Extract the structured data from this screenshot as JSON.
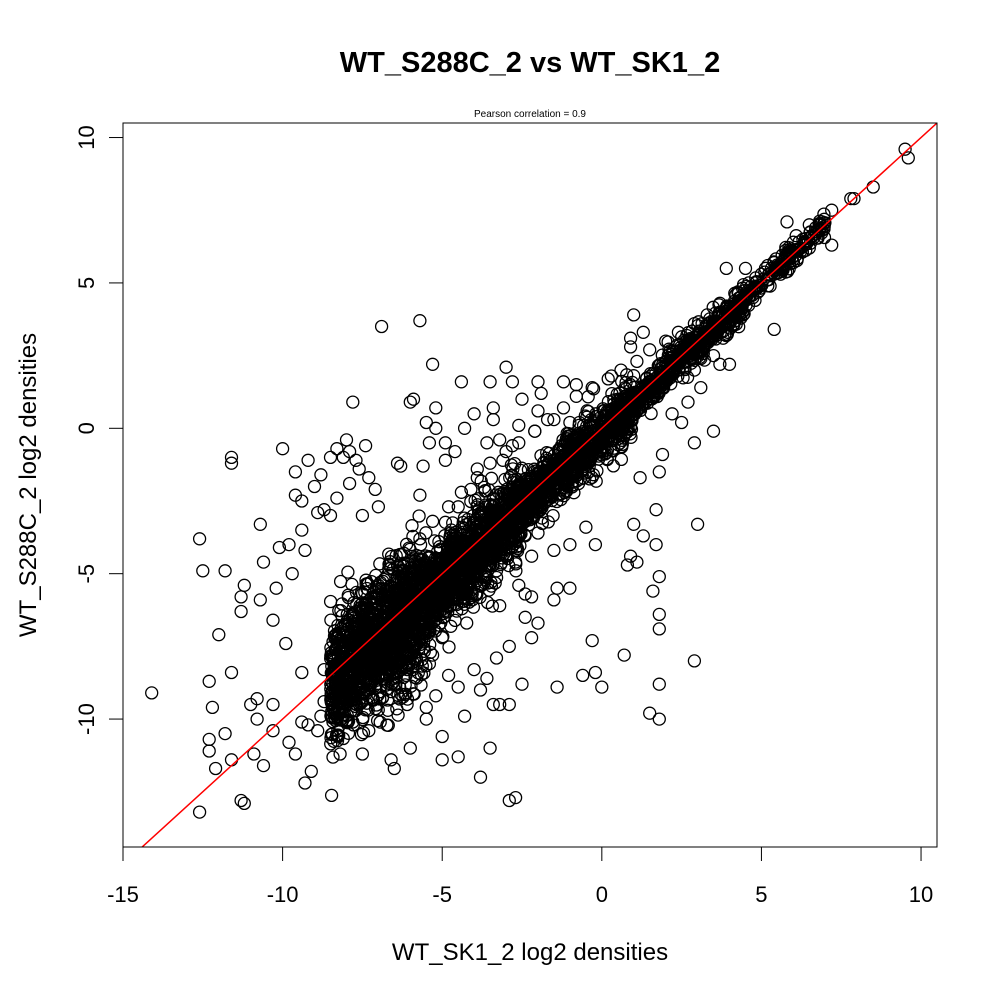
{
  "chart_data": {
    "type": "scatter",
    "title": "WT_S288C_2 vs WT_SK1_2",
    "subtitle": "Pearson correlation =  0.9",
    "xlabel": "WT_SK1_2 log2 densities",
    "ylabel": "WT_S288C_2 log2 densities",
    "xlim": [
      -15,
      10.5
    ],
    "ylim": [
      -14.4,
      10.5
    ],
    "x_ticks": [
      -15,
      -10,
      -5,
      0,
      5,
      10
    ],
    "y_ticks": [
      -10,
      -5,
      0,
      5,
      10
    ],
    "x_tick_labels": [
      "-15",
      "-10",
      "-5",
      "0",
      "5",
      "10"
    ],
    "y_tick_labels": [
      "-10",
      "-5",
      "0",
      "5",
      "10"
    ],
    "grid": false,
    "marker": "open-circle",
    "reference_line": {
      "type": "identity",
      "slope": 1,
      "intercept": 0,
      "color": "#ff0000"
    },
    "colors": {
      "points": "#000000",
      "reference_line": "#ff0000"
    },
    "points": [
      [
        9.5,
        9.6
      ],
      [
        9.6,
        9.3
      ],
      [
        8.5,
        8.3
      ],
      [
        7.8,
        7.9
      ],
      [
        7.9,
        7.9
      ],
      [
        7.2,
        7.5
      ],
      [
        6.9,
        7.1
      ],
      [
        7.2,
        6.3
      ],
      [
        6.5,
        7.0
      ],
      [
        5.8,
        7.1
      ],
      [
        6.0,
        6.4
      ],
      [
        5.2,
        5.6
      ],
      [
        4.5,
        5.5
      ],
      [
        3.9,
        5.5
      ],
      [
        5.4,
        3.4
      ],
      [
        4.3,
        4.0
      ],
      [
        3.8,
        3.1
      ],
      [
        3.2,
        3.3
      ],
      [
        3.7,
        2.2
      ],
      [
        4.0,
        2.2
      ],
      [
        3.5,
        2.5
      ],
      [
        2.9,
        2.0
      ],
      [
        3.1,
        1.4
      ],
      [
        2.7,
        0.9
      ],
      [
        3.5,
        -0.1
      ],
      [
        2.2,
        0.5
      ],
      [
        2.5,
        0.2
      ],
      [
        2.9,
        -0.5
      ],
      [
        1.0,
        3.9
      ],
      [
        0.9,
        3.1
      ],
      [
        1.3,
        3.3
      ],
      [
        0.9,
        2.8
      ],
      [
        0.3,
        1.8
      ],
      [
        1.4,
        1.7
      ],
      [
        1.9,
        1.4
      ],
      [
        1.2,
        -1.7
      ],
      [
        1.8,
        -1.5
      ],
      [
        1.9,
        -0.9
      ],
      [
        3.0,
        -3.3
      ],
      [
        1.7,
        -2.8
      ],
      [
        1.0,
        -3.3
      ],
      [
        1.3,
        -3.7
      ],
      [
        0.9,
        -4.4
      ],
      [
        1.7,
        -4.0
      ],
      [
        0.8,
        -4.7
      ],
      [
        1.1,
        -4.6
      ],
      [
        1.8,
        -5.1
      ],
      [
        1.8,
        -6.4
      ],
      [
        1.6,
        -5.6
      ],
      [
        2.9,
        -8.0
      ],
      [
        1.8,
        -6.9
      ],
      [
        1.8,
        -8.8
      ],
      [
        1.5,
        -9.8
      ],
      [
        1.8,
        -10.0
      ],
      [
        0.7,
        -7.8
      ],
      [
        0.0,
        -8.9
      ],
      [
        -0.2,
        -8.4
      ],
      [
        -0.6,
        -8.5
      ],
      [
        -0.3,
        -7.3
      ],
      [
        -0.2,
        -4.0
      ],
      [
        -0.5,
        -3.4
      ],
      [
        -1.0,
        -4.0
      ],
      [
        -1.5,
        -4.2
      ],
      [
        -1.0,
        -5.5
      ],
      [
        -1.4,
        -5.5
      ],
      [
        -1.5,
        -5.9
      ],
      [
        -2.2,
        -4.4
      ],
      [
        -2.2,
        -5.8
      ],
      [
        -2.7,
        -4.6
      ],
      [
        -3.2,
        -6.1
      ],
      [
        -2.5,
        -8.8
      ],
      [
        -1.4,
        -8.9
      ],
      [
        -2.7,
        -12.7
      ],
      [
        -2.9,
        -12.8
      ],
      [
        -3.8,
        -12.0
      ],
      [
        -3.5,
        -11.0
      ],
      [
        -4.5,
        -11.3
      ],
      [
        -5.0,
        -11.4
      ],
      [
        -5.0,
        -10.6
      ],
      [
        -5.5,
        -10.0
      ],
      [
        -4.3,
        -9.9
      ],
      [
        -3.2,
        -9.5
      ],
      [
        -3.4,
        -9.5
      ],
      [
        -2.9,
        -9.5
      ],
      [
        -3.8,
        -9.0
      ],
      [
        -6.0,
        -11.0
      ],
      [
        -6.6,
        -11.4
      ],
      [
        -6.5,
        -11.7
      ],
      [
        -7.5,
        -11.2
      ],
      [
        -8.2,
        -11.2
      ],
      [
        -9.1,
        -11.8
      ],
      [
        -9.3,
        -12.2
      ],
      [
        -9.6,
        -11.2
      ],
      [
        -10.6,
        -11.6
      ],
      [
        -10.9,
        -11.2
      ],
      [
        -11.6,
        -11.4
      ],
      [
        -11.2,
        -12.9
      ],
      [
        -11.3,
        -12.8
      ],
      [
        -12.6,
        -13.2
      ],
      [
        -12.3,
        -10.7
      ],
      [
        -12.3,
        -11.1
      ],
      [
        -12.1,
        -11.7
      ],
      [
        -11.8,
        -10.5
      ],
      [
        -12.2,
        -9.6
      ],
      [
        -12.3,
        -8.7
      ],
      [
        -11.6,
        -8.4
      ],
      [
        -12.0,
        -7.1
      ],
      [
        -11.3,
        -6.3
      ],
      [
        -11.2,
        -5.4
      ],
      [
        -11.3,
        -5.8
      ],
      [
        -11.8,
        -4.9
      ],
      [
        -12.5,
        -4.9
      ],
      [
        -12.6,
        -3.8
      ],
      [
        -14.1,
        -9.1
      ],
      [
        -11.0,
        -9.5
      ],
      [
        -10.8,
        -9.3
      ],
      [
        -10.3,
        -9.5
      ],
      [
        -10.8,
        -10.0
      ],
      [
        -10.3,
        -10.4
      ],
      [
        -9.8,
        -10.8
      ],
      [
        -9.4,
        -10.1
      ],
      [
        -8.9,
        -10.4
      ],
      [
        -8.7,
        -9.4
      ],
      [
        -9.4,
        -8.4
      ],
      [
        -9.9,
        -7.4
      ],
      [
        -10.3,
        -6.6
      ],
      [
        -10.7,
        -5.9
      ],
      [
        -10.2,
        -5.5
      ],
      [
        -10.6,
        -4.6
      ],
      [
        -10.7,
        -3.3
      ],
      [
        -9.8,
        -4.0
      ],
      [
        -10.1,
        -4.1
      ],
      [
        -9.7,
        -5.0
      ],
      [
        -9.3,
        -4.2
      ],
      [
        -9.4,
        -3.5
      ],
      [
        -9.6,
        -2.3
      ],
      [
        -9.0,
        -2.0
      ],
      [
        -9.6,
        -1.5
      ],
      [
        -9.2,
        -1.1
      ],
      [
        -10.0,
        -0.7
      ],
      [
        -9.4,
        -2.5
      ],
      [
        -8.8,
        -1.6
      ],
      [
        -8.5,
        -1.0
      ],
      [
        -8.1,
        -1.0
      ],
      [
        -8.3,
        -0.7
      ],
      [
        -8.0,
        -0.4
      ],
      [
        -7.9,
        -0.8
      ],
      [
        -7.4,
        -0.6
      ],
      [
        -7.7,
        -1.1
      ],
      [
        -7.6,
        -1.4
      ],
      [
        -7.3,
        -1.7
      ],
      [
        -7.1,
        -2.1
      ],
      [
        -7.0,
        -2.7
      ],
      [
        -7.5,
        -3.0
      ],
      [
        -8.3,
        -2.4
      ],
      [
        -8.7,
        -2.8
      ],
      [
        -8.9,
        -2.9
      ],
      [
        -8.5,
        -3.0
      ],
      [
        -7.9,
        -1.9
      ],
      [
        -11.6,
        -1.0
      ],
      [
        -11.6,
        -1.2
      ],
      [
        -7.8,
        0.9
      ],
      [
        -6.9,
        3.5
      ],
      [
        -5.7,
        3.7
      ],
      [
        -5.3,
        2.2
      ],
      [
        -5.9,
        1.0
      ],
      [
        -6.0,
        0.9
      ],
      [
        -5.2,
        0.7
      ],
      [
        -5.5,
        0.2
      ],
      [
        -5.2,
        0.0
      ],
      [
        -5.4,
        -0.5
      ],
      [
        -4.9,
        -0.5
      ],
      [
        -6.4,
        -1.2
      ],
      [
        -6.3,
        -1.3
      ],
      [
        -5.6,
        -1.3
      ],
      [
        -5.7,
        -2.3
      ],
      [
        -4.4,
        1.6
      ],
      [
        -3.4,
        0.7
      ],
      [
        -4.0,
        0.5
      ],
      [
        -4.3,
        0.0
      ],
      [
        -4.6,
        -0.8
      ],
      [
        -4.9,
        -1.1
      ],
      [
        -3.9,
        -1.4
      ],
      [
        -3.6,
        -0.5
      ],
      [
        -3.2,
        -0.4
      ],
      [
        -3.4,
        0.3
      ],
      [
        -3.5,
        1.6
      ],
      [
        -3.0,
        2.1
      ],
      [
        -2.8,
        1.6
      ],
      [
        -2.5,
        1.0
      ],
      [
        -2.0,
        1.6
      ],
      [
        -1.9,
        1.2
      ],
      [
        -1.2,
        1.6
      ],
      [
        -0.8,
        1.5
      ],
      [
        -2.0,
        0.6
      ],
      [
        -1.5,
        0.3
      ],
      [
        -1.0,
        0.2
      ],
      [
        -2.6,
        0.1
      ],
      [
        -2.1,
        -0.1
      ],
      [
        -2.8,
        -0.6
      ],
      [
        -3.1,
        -1.1
      ],
      [
        -4.1,
        -2.1
      ],
      [
        -4.5,
        -2.7
      ],
      [
        -3.4,
        -2.4
      ],
      [
        -3.9,
        -3.1
      ],
      [
        -2.6,
        -3.4
      ],
      [
        -2.0,
        -3.6
      ],
      [
        -2.7,
        -4.2
      ],
      [
        -3.3,
        -4.9
      ],
      [
        -2.6,
        -5.4
      ],
      [
        -2.4,
        -5.7
      ],
      [
        -2.4,
        -6.5
      ],
      [
        -2.2,
        -7.2
      ],
      [
        -2.0,
        -6.7
      ],
      [
        -2.9,
        -7.5
      ],
      [
        -3.3,
        -7.9
      ],
      [
        -3.6,
        -8.6
      ],
      [
        -4.0,
        -8.3
      ],
      [
        -4.5,
        -8.9
      ],
      [
        -4.8,
        -8.5
      ],
      [
        -5.2,
        -9.2
      ],
      [
        -5.5,
        -9.6
      ],
      [
        -6.1,
        -9.5
      ],
      [
        -6.7,
        -9.7
      ],
      [
        -7.3,
        -10.4
      ],
      [
        -7.8,
        -10.1
      ],
      [
        -7.3,
        -9.0
      ],
      [
        -6.6,
        -8.8
      ],
      [
        -6.1,
        -8.3
      ],
      [
        -5.3,
        -7.8
      ],
      [
        -5.0,
        -7.2
      ],
      [
        -5.6,
        -6.8
      ],
      [
        -6.2,
        -7.4
      ],
      [
        -6.9,
        -7.9
      ],
      [
        -7.6,
        -8.6
      ],
      [
        -8.2,
        -8.8
      ],
      [
        -8.7,
        -8.3
      ],
      [
        -8.3,
        -7.5
      ],
      [
        -7.9,
        -6.6
      ],
      [
        -7.5,
        -6.0
      ],
      [
        -7.0,
        -5.4
      ],
      [
        -6.6,
        -4.8
      ],
      [
        -6.2,
        -4.3
      ],
      [
        -5.7,
        -3.8
      ],
      [
        -5.3,
        -3.2
      ],
      [
        -4.8,
        -2.7
      ],
      [
        -4.4,
        -2.2
      ],
      [
        -3.9,
        -1.7
      ],
      [
        -3.5,
        -1.2
      ],
      [
        -3.0,
        -0.8
      ],
      [
        -2.6,
        -0.5
      ],
      [
        -2.1,
        -0.1
      ],
      [
        -1.7,
        0.3
      ],
      [
        -1.2,
        0.7
      ],
      [
        -0.8,
        1.1
      ],
      [
        -0.3,
        1.4
      ],
      [
        0.2,
        1.7
      ],
      [
        0.6,
        2.0
      ],
      [
        1.1,
        2.3
      ],
      [
        1.5,
        2.7
      ],
      [
        2.0,
        3.0
      ],
      [
        2.4,
        3.3
      ],
      [
        2.9,
        3.6
      ],
      [
        3.3,
        3.9
      ],
      [
        3.7,
        4.3
      ],
      [
        4.2,
        4.6
      ],
      [
        4.6,
        5.0
      ],
      [
        5.0,
        5.3
      ],
      [
        5.4,
        5.7
      ],
      [
        5.9,
        6.1
      ],
      [
        6.3,
        6.5
      ],
      [
        6.7,
        6.9
      ],
      [
        6.5,
        6.2
      ],
      [
        6.0,
        5.7
      ],
      [
        5.6,
        5.3
      ],
      [
        5.2,
        4.9
      ],
      [
        4.8,
        4.4
      ],
      [
        4.4,
        4.0
      ],
      [
        4.0,
        3.6
      ],
      [
        3.6,
        3.2
      ],
      [
        3.2,
        2.8
      ],
      [
        2.8,
        2.4
      ],
      [
        2.4,
        2.0
      ],
      [
        2.0,
        1.6
      ],
      [
        1.6,
        1.1
      ],
      [
        1.2,
        0.7
      ],
      [
        0.8,
        0.3
      ],
      [
        0.4,
        -0.1
      ],
      [
        0.0,
        -0.5
      ],
      [
        -0.4,
        -0.9
      ],
      [
        -0.8,
        -1.4
      ],
      [
        -1.2,
        -1.8
      ],
      [
        -1.6,
        -2.3
      ],
      [
        -2.0,
        -2.7
      ],
      [
        -2.4,
        -3.2
      ],
      [
        -2.8,
        -3.6
      ],
      [
        -3.2,
        -4.1
      ],
      [
        -3.6,
        -4.5
      ],
      [
        -4.0,
        -5.0
      ],
      [
        -4.4,
        -5.4
      ],
      [
        -4.8,
        -5.9
      ],
      [
        -5.2,
        -6.3
      ],
      [
        -5.6,
        -6.8
      ],
      [
        -6.0,
        -7.2
      ],
      [
        -6.4,
        -7.6
      ],
      [
        -6.8,
        -8.1
      ],
      [
        -7.2,
        -8.5
      ],
      [
        -7.6,
        -8.9
      ],
      [
        -8.0,
        -9.3
      ],
      [
        -8.4,
        -9.6
      ],
      [
        -8.8,
        -9.9
      ],
      [
        -9.2,
        -10.2
      ]
    ],
    "cloud": {
      "description": "dense overlapping point cloud along the diagonal",
      "segments": [
        {
          "x_from": -8.5,
          "x_to": -5.5,
          "y_offset_mean": -0.4,
          "y_spread": 1.8,
          "n": 1400
        },
        {
          "x_from": -5.5,
          "x_to": -2.5,
          "y_offset_mean": -0.3,
          "y_spread": 1.2,
          "n": 1200
        },
        {
          "x_from": -2.5,
          "x_to": 1.0,
          "y_offset_mean": -0.2,
          "y_spread": 0.8,
          "n": 900
        },
        {
          "x_from": 1.0,
          "x_to": 4.5,
          "y_offset_mean": -0.1,
          "y_spread": 0.5,
          "n": 500
        },
        {
          "x_from": 4.5,
          "x_to": 7.0,
          "y_offset_mean": 0.0,
          "y_spread": 0.3,
          "n": 150
        }
      ]
    }
  }
}
